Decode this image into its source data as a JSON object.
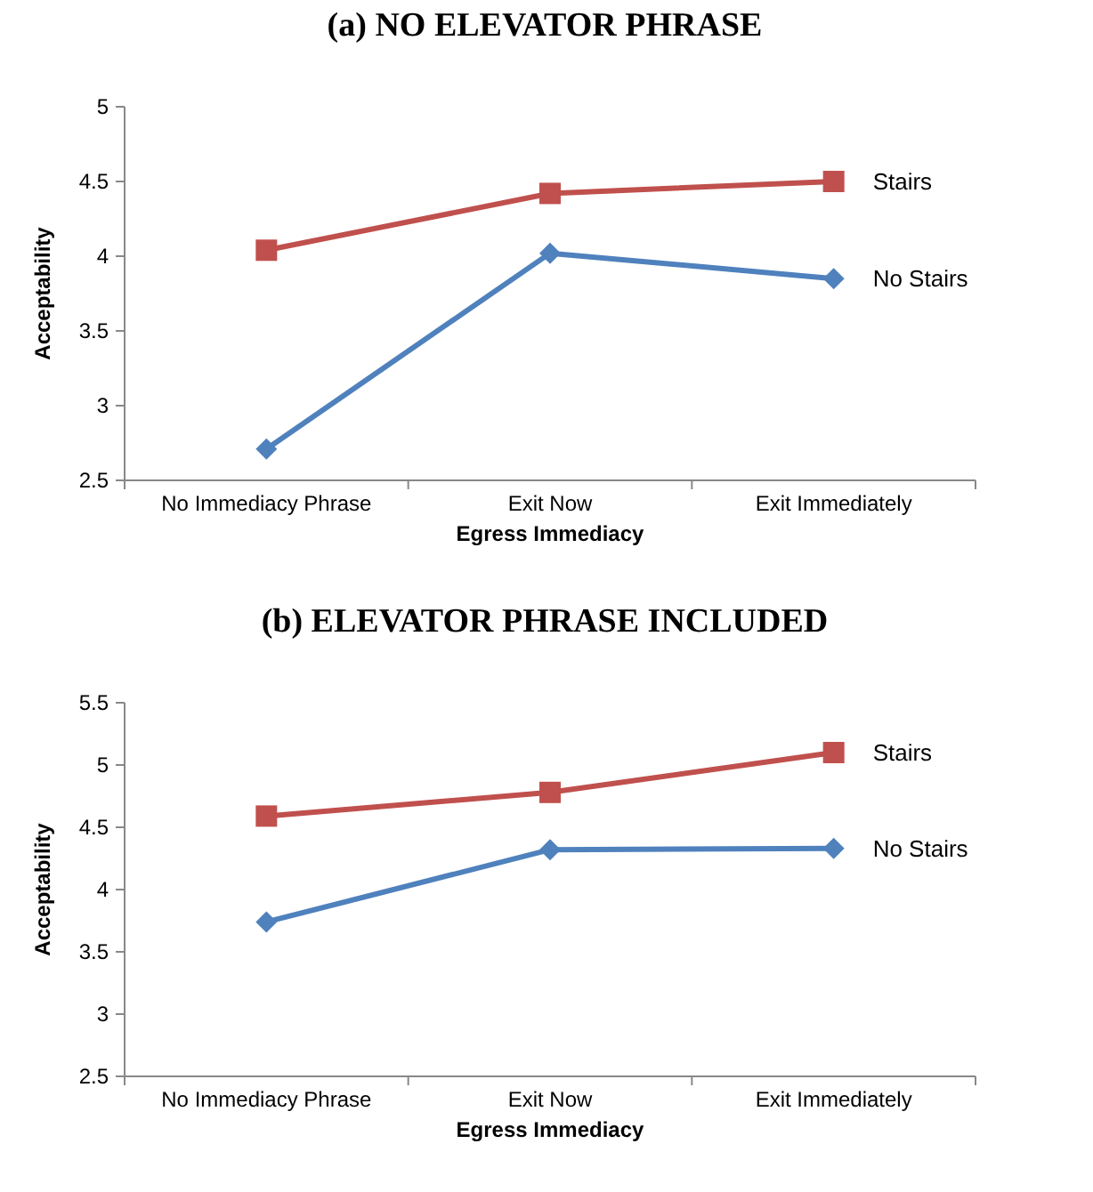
{
  "chart_data": [
    {
      "type": "line",
      "title": "(a) NO ELEVATOR PHRASE",
      "xlabel": "Egress Immediacy",
      "ylabel": "Acceptability",
      "categories": [
        "No Immediacy Phrase",
        "Exit Now",
        "Exit Immediately"
      ],
      "ylim": [
        2.5,
        5
      ],
      "yticks": [
        2.5,
        3,
        3.5,
        4,
        4.5,
        5
      ],
      "grid": false,
      "legend": false,
      "series": [
        {
          "name": "Stairs",
          "color": "#c0504d",
          "marker": "square",
          "values": [
            4.04,
            4.42,
            4.5
          ]
        },
        {
          "name": "No Stairs",
          "color": "#4f81bd",
          "marker": "diamond",
          "values": [
            2.71,
            4.02,
            3.85
          ]
        }
      ]
    },
    {
      "type": "line",
      "title": "(b) ELEVATOR PHRASE INCLUDED",
      "xlabel": "Egress Immediacy",
      "ylabel": "Acceptability",
      "categories": [
        "No Immediacy Phrase",
        "Exit Now",
        "Exit Immediately"
      ],
      "ylim": [
        2.5,
        5.5
      ],
      "yticks": [
        2.5,
        3,
        3.5,
        4,
        4.5,
        5,
        5.5
      ],
      "grid": false,
      "legend": false,
      "series": [
        {
          "name": "Stairs",
          "color": "#c0504d",
          "marker": "square",
          "values": [
            4.59,
            4.78,
            5.1
          ]
        },
        {
          "name": "No Stairs",
          "color": "#4f81bd",
          "marker": "diamond",
          "values": [
            3.74,
            4.32,
            4.33
          ]
        }
      ]
    }
  ]
}
